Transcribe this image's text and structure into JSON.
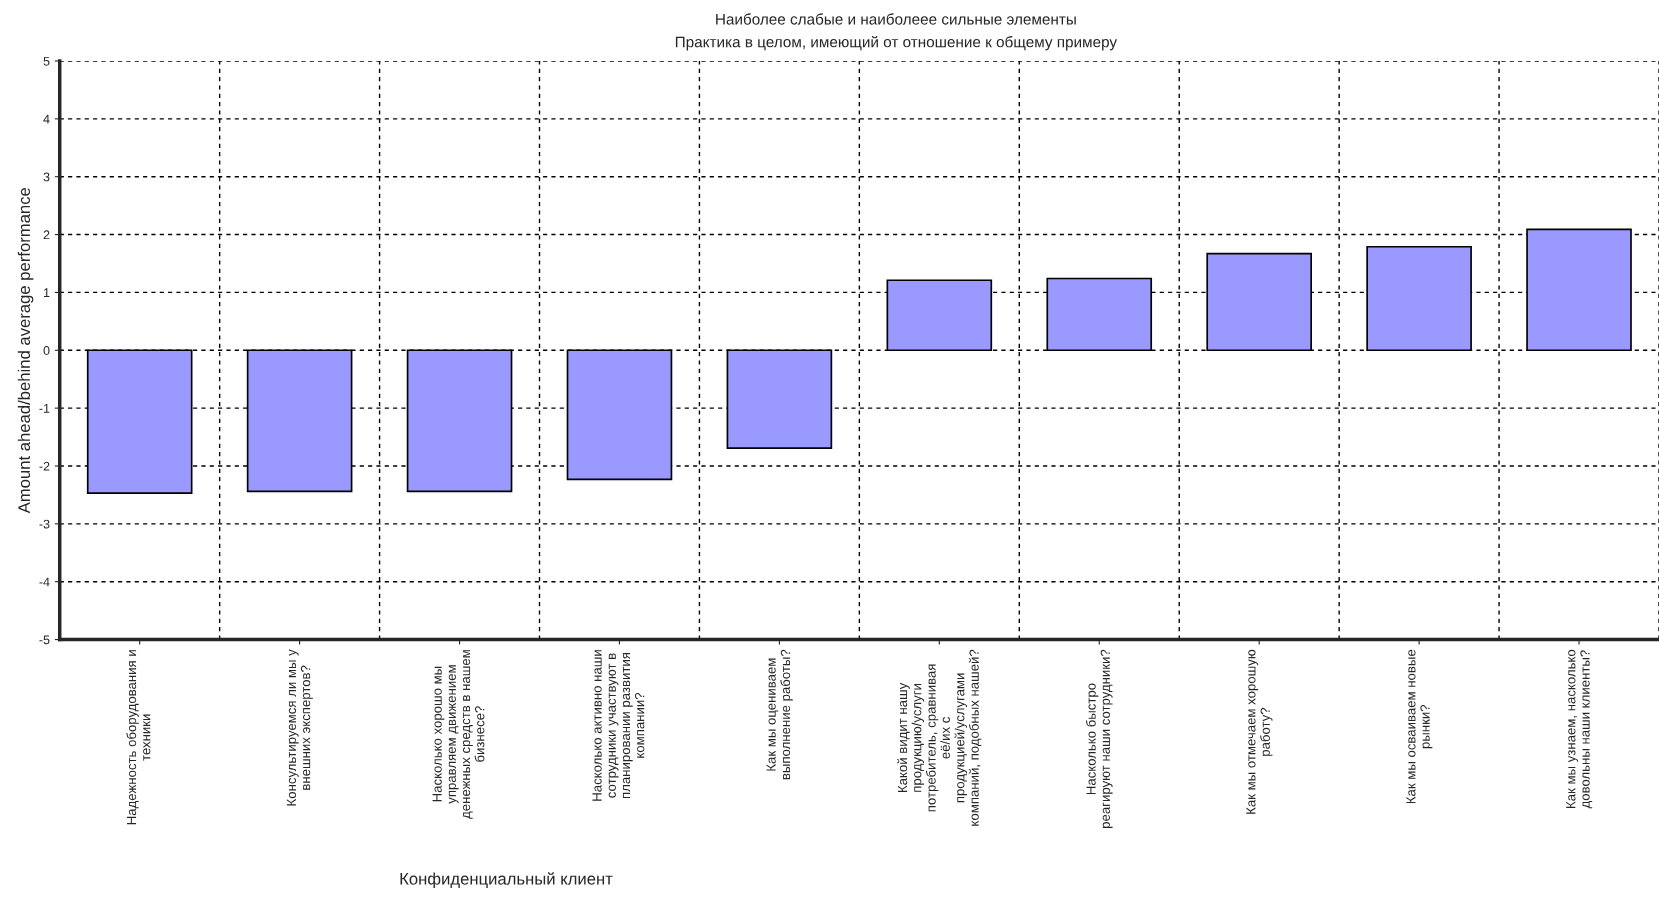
{
  "chart_data": {
    "type": "bar",
    "title": "Наиболее слабые и наиболеее сильные элементы",
    "subtitle": "Практика в целом, имеющий от отношение к общему примеру",
    "ylabel": "Amount ahead/behind average performance",
    "categories": [
      "Надежность оборудования и\nтехники",
      "Консультируемся ли мы у\nвнешних экспертов?",
      "Насколько хорошо мы\nуправляем движением\nденежных средств в нашем\nбизнесе?",
      "Насколько активно наши\nсотрудники участвуют в\nпланировании развития\nкомпании?",
      "Как мы оцениваем\nвыполнение работы?",
      "Какой видит нашу\nпродукцию/услуги\nпотребитель, сравнивая\nеё/их с\nпродукцией/услугами\nкомпаний, подобных нашей?",
      "Насколько быстро\nреагируют наши сотрудники?",
      "Как мы отмечаем хорошую\nработу?",
      "Как мы осваиваем новые\nрынки?",
      "Как мы узнаем, насколько\nдовольны наши клиенты?"
    ],
    "values": [
      -2.47,
      -2.44,
      -2.44,
      -2.23,
      -1.69,
      1.21,
      1.24,
      1.67,
      1.79,
      2.09
    ],
    "color": "#9999ff",
    "ylim": [
      -5,
      5
    ],
    "yticks": [
      -5,
      -4,
      -3,
      -2,
      -1,
      0,
      1,
      2,
      3,
      4,
      5
    ],
    "grid": true,
    "annotations": [
      "Конфиденциальный клиент"
    ]
  }
}
